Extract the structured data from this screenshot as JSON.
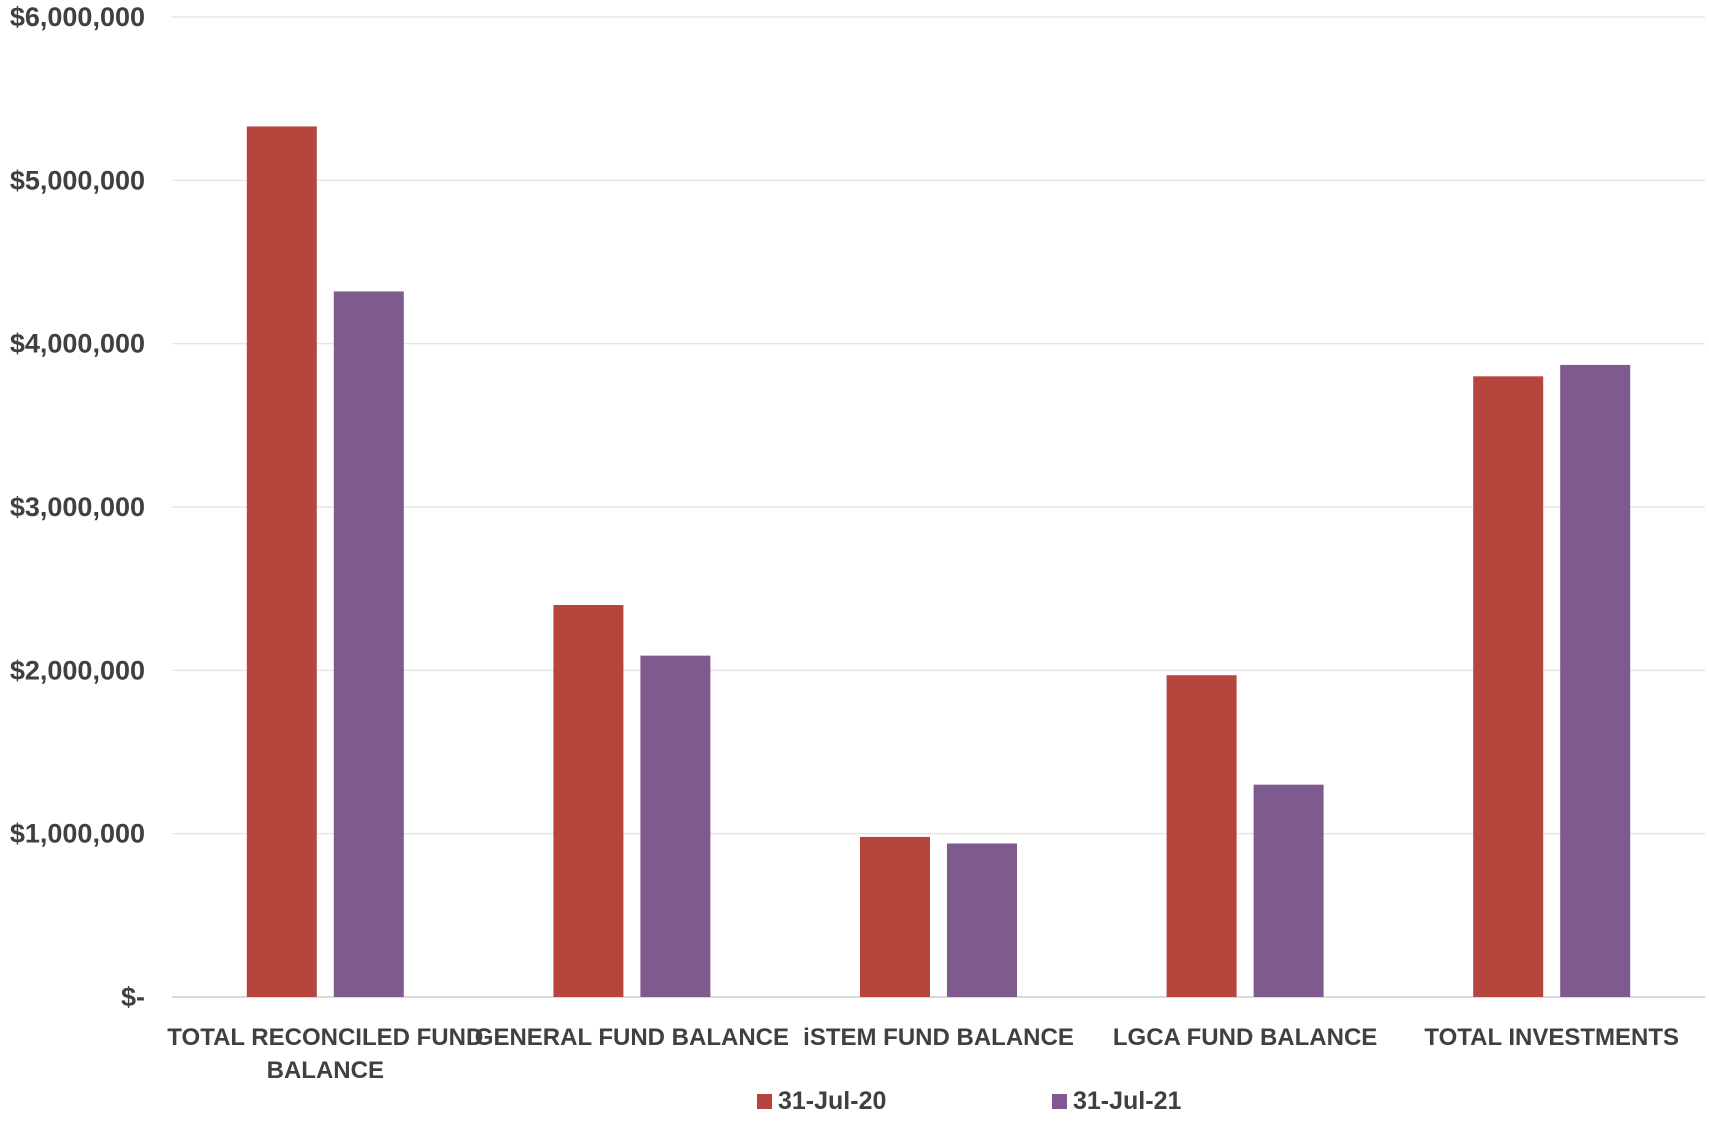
{
  "chart_data": {
    "type": "bar",
    "title": "",
    "xlabel": "",
    "ylabel": "",
    "ylim": [
      0,
      6000000
    ],
    "y_ticks": [
      {
        "value": 0,
        "label": "$-"
      },
      {
        "value": 1000000,
        "label": "$1,000,000"
      },
      {
        "value": 2000000,
        "label": "$2,000,000"
      },
      {
        "value": 3000000,
        "label": "$3,000,000"
      },
      {
        "value": 4000000,
        "label": "$4,000,000"
      },
      {
        "value": 5000000,
        "label": "$5,000,000"
      },
      {
        "value": 6000000,
        "label": "$6,000,000"
      }
    ],
    "categories": [
      [
        "TOTAL RECONCILED FUND",
        "BALANCE"
      ],
      [
        "GENERAL FUND BALANCE"
      ],
      [
        "iSTEM FUND BALANCE"
      ],
      [
        "LGCA FUND BALANCE"
      ],
      [
        "TOTAL INVESTMENTS"
      ]
    ],
    "series": [
      {
        "name": "31-Jul-20",
        "color": "#b5453d",
        "values": [
          5330000,
          2400000,
          980000,
          1970000,
          3800000
        ]
      },
      {
        "name": "31-Jul-21",
        "color": "#7e5a8e",
        "values": [
          4320000,
          2090000,
          940000,
          1300000,
          3870000
        ]
      }
    ],
    "grid": true,
    "legend_position": "bottom"
  }
}
